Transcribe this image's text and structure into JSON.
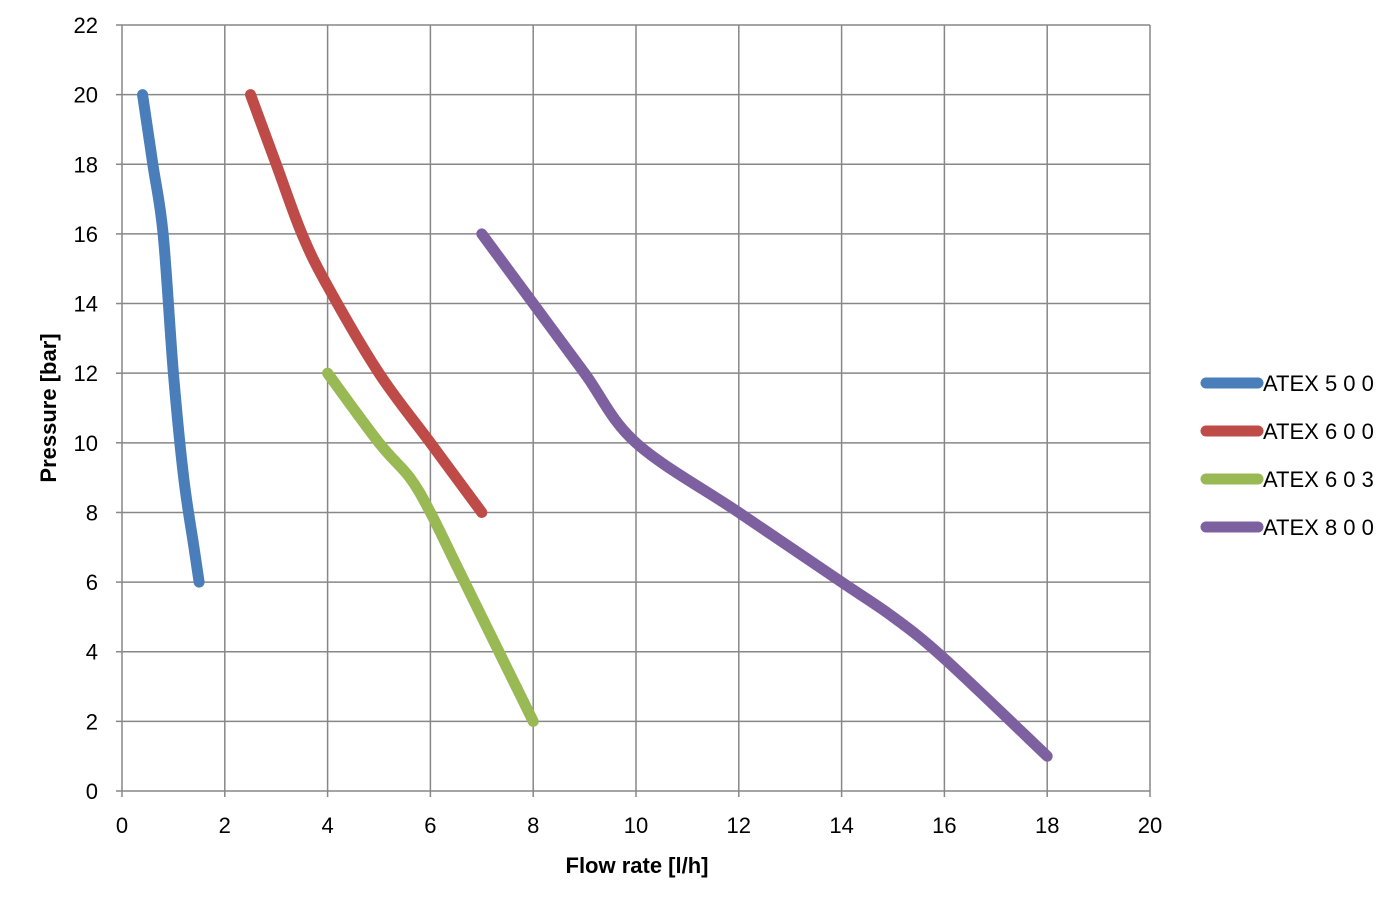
{
  "chart_data": {
    "type": "line",
    "title": "",
    "xlabel": "Flow rate [l/h]",
    "ylabel": "Pressure [bar]",
    "xlim": [
      0,
      20
    ],
    "ylim": [
      0,
      22
    ],
    "xticks": [
      "0",
      "2",
      "4",
      "6",
      "8",
      "10",
      "12",
      "14",
      "16",
      "18",
      "20"
    ],
    "yticks": [
      "0",
      "2",
      "4",
      "6",
      "8",
      "10",
      "12",
      "14",
      "16",
      "18",
      "20",
      "22"
    ],
    "grid": true,
    "legend_position": "right",
    "series": [
      {
        "name": "ATEX 5 0 0",
        "color": "#4A7EBB",
        "x": [
          0.4,
          0.6,
          0.8,
          1.0,
          1.2,
          1.4,
          1.5
        ],
        "y": [
          20,
          18,
          16,
          12,
          9,
          7,
          6
        ]
      },
      {
        "name": "ATEX 6 0 0",
        "color": "#BE4B48",
        "x": [
          2.5,
          3.0,
          3.5,
          4.0,
          5.0,
          6.0,
          7.0
        ],
        "y": [
          20,
          18,
          16,
          14.5,
          12,
          10,
          8
        ]
      },
      {
        "name": "ATEX 6 0 3",
        "color": "#98B954",
        "x": [
          4.0,
          5.0,
          5.6,
          6.0,
          6.5,
          7.0,
          7.5,
          8.0
        ],
        "y": [
          12,
          10,
          9,
          8,
          6.5,
          5,
          3.5,
          2
        ]
      },
      {
        "name": "ATEX 8 0 0",
        "color": "#7D60A0",
        "x": [
          7.0,
          8.0,
          9.0,
          10.0,
          12.0,
          14.0,
          15.0,
          16.0,
          18.0
        ],
        "y": [
          16,
          14,
          12,
          10,
          8,
          6,
          5,
          3.8,
          1
        ]
      }
    ]
  }
}
